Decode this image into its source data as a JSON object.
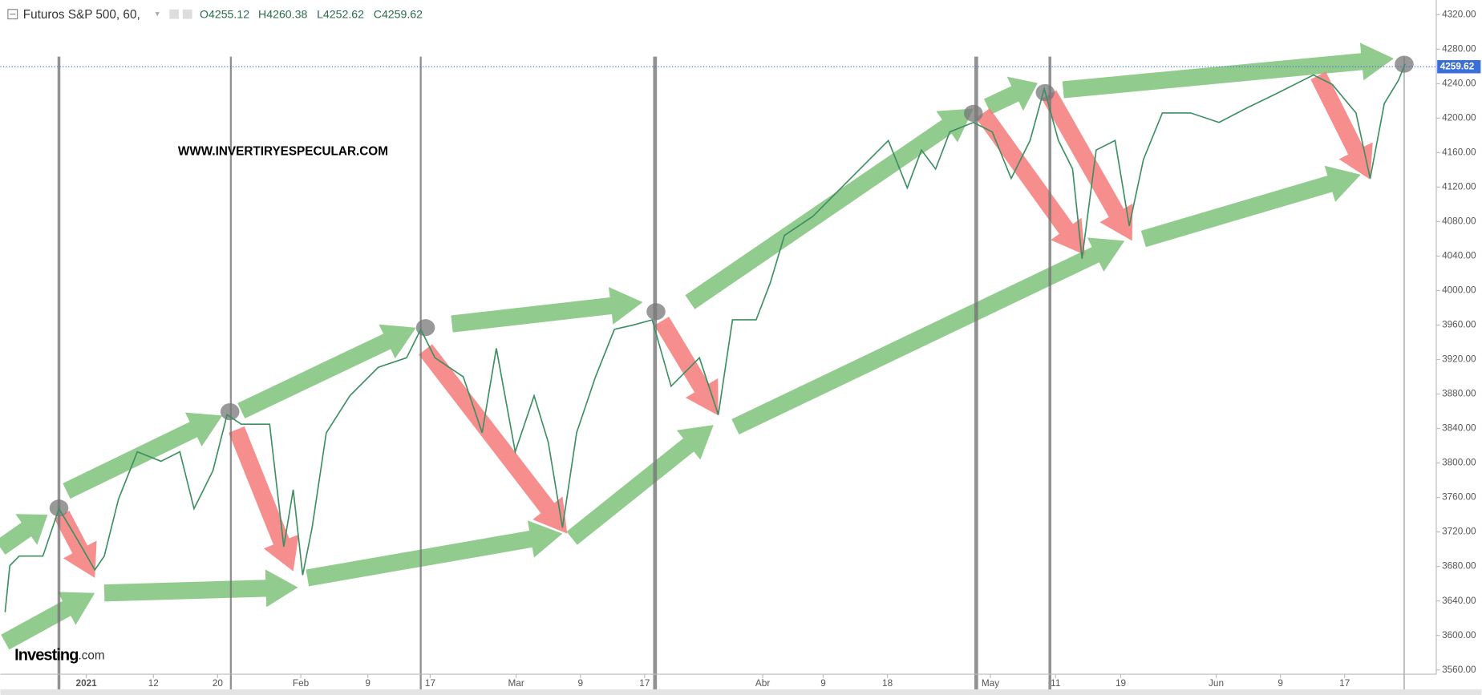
{
  "chart_data": {
    "type": "line",
    "title": "Futuros S&P 500, 60,",
    "ohlc_labels": [
      "O4255.12",
      "H4260.38",
      "L4252.62",
      "C4259.62"
    ],
    "watermark": "WWW.INVERTIRYESPECULAR.COM",
    "brand": [
      "Investing",
      ".com"
    ],
    "last_price": 4259.62,
    "series": [
      {
        "name": "S&P 500",
        "color": "#3d8f62",
        "x": [
          0,
          5,
          15,
          40,
          57,
          75,
          95,
          105,
          120,
          140,
          165,
          185,
          200,
          220,
          235,
          250,
          280,
          295,
          305,
          315,
          325,
          340,
          365,
          395,
          425,
          440,
          455,
          485,
          505,
          520,
          540,
          560,
          575,
          590,
          605,
          625,
          645,
          665,
          685,
          705,
          735,
          755,
          770,
          795,
          810,
          825,
          855,
          885,
          915,
          935,
          955,
          970,
          985,
          1000,
          1025,
          1045,
          1065,
          1085,
          1100,
          1115,
          1130,
          1140,
          1155,
          1175,
          1190,
          1205,
          1225,
          1255,
          1285,
          1315,
          1345,
          1385,
          1405,
          1430,
          1445,
          1460,
          1475,
          1482
        ],
        "values": [
          3627,
          3681,
          3692,
          3692,
          3747,
          3714,
          3676,
          3692,
          3758,
          3813,
          3802,
          3813,
          3747,
          3791,
          3856,
          3845,
          3845,
          3703,
          3769,
          3670,
          3725,
          3835,
          3878,
          3911,
          3922,
          3955,
          3922,
          3900,
          3835,
          3933,
          3813,
          3878,
          3824,
          3725,
          3835,
          3900,
          3955,
          3960,
          3966,
          3889,
          3922,
          3856,
          3966,
          3966,
          4009,
          4064,
          4086,
          4119,
          4152,
          4174,
          4119,
          4163,
          4141,
          4184,
          4195,
          4184,
          4130,
          4174,
          4234,
          4174,
          4141,
          4037,
          4163,
          4174,
          4075,
          4152,
          4206,
          4206,
          4195,
          4212,
          4228,
          4250,
          4239,
          4206,
          4130,
          4217,
          4244,
          4263
        ]
      }
    ],
    "xlim": [
      0,
      1515
    ],
    "xticks": [
      {
        "value": 86,
        "label": "2021"
      },
      {
        "value": 157,
        "label": "12"
      },
      {
        "value": 225,
        "label": "20"
      },
      {
        "value": 313,
        "label": "Feb"
      },
      {
        "value": 384,
        "label": "9"
      },
      {
        "value": 450,
        "label": "17"
      },
      {
        "value": 541,
        "label": "Mar"
      },
      {
        "value": 609,
        "label": "9"
      },
      {
        "value": 677,
        "label": "17"
      },
      {
        "value": 802,
        "label": "Abr"
      },
      {
        "value": 866,
        "label": "9"
      },
      {
        "value": 934,
        "label": "18"
      },
      {
        "value": 1043,
        "label": "May"
      },
      {
        "value": 1112,
        "label": "11"
      },
      {
        "value": 1181,
        "label": "19"
      },
      {
        "value": 1282,
        "label": "Jun"
      },
      {
        "value": 1350,
        "label": "9"
      },
      {
        "value": 1418,
        "label": "17"
      }
    ],
    "ylim": [
      3555,
      4337
    ],
    "yticks": [
      {
        "value": 3560,
        "label": "3560.00"
      },
      {
        "value": 3600,
        "label": "3600.00"
      },
      {
        "value": 3640,
        "label": "3640.00"
      },
      {
        "value": 3680,
        "label": "3680.00"
      },
      {
        "value": 3720,
        "label": "3720.00"
      },
      {
        "value": 3760,
        "label": "3760.00"
      },
      {
        "value": 3800,
        "label": "3800.00"
      },
      {
        "value": 3840,
        "label": "3840.00"
      },
      {
        "value": 3880,
        "label": "3880.00"
      },
      {
        "value": 3920,
        "label": "3920.00"
      },
      {
        "value": 3960,
        "label": "3960.00"
      },
      {
        "value": 4000,
        "label": "4000.00"
      },
      {
        "value": 4040,
        "label": "4040.00"
      },
      {
        "value": 4080,
        "label": "4080.00"
      },
      {
        "value": 4120,
        "label": "4120.00"
      },
      {
        "value": 4160,
        "label": "4160.00"
      },
      {
        "value": 4200,
        "label": "4200.00"
      },
      {
        "value": 4240,
        "label": "4240.00"
      },
      {
        "value": 4280,
        "label": "4280.00"
      },
      {
        "value": 4320,
        "label": "4320.00"
      }
    ]
  }
}
